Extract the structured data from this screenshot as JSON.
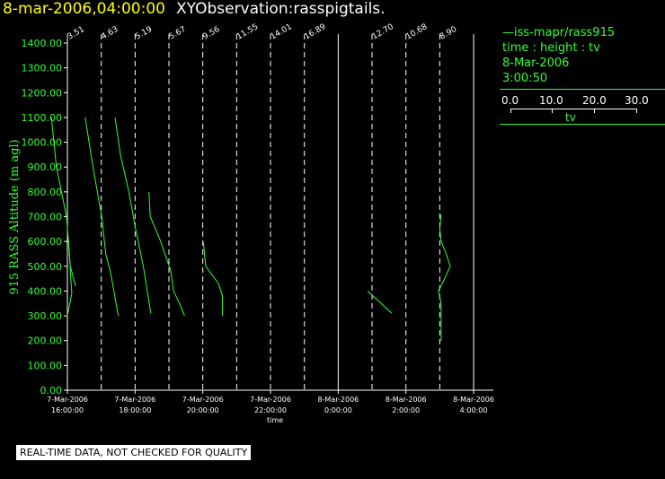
{
  "header": {
    "date": "8-mar-2006,04:00:00",
    "title": "XYObservation:rasspigtails."
  },
  "legend": {
    "series": "iss-mapr/rass915",
    "vars": "time : height : tv",
    "date": "8-Mar-2006",
    "time": "3:00:50",
    "scale_ticks": [
      "0.0",
      "10.0",
      "20.0",
      "30.0"
    ],
    "scale_var": "tv"
  },
  "footer": {
    "quality_note": "REAL-TIME DATA, NOT CHECKED FOR QUALITY"
  },
  "colors": {
    "series": "#33ff33",
    "title_date": "#ffff00",
    "axis": "#ffffff",
    "background": "#000000"
  },
  "chart_data": {
    "type": "line",
    "ylabel": "915 RASS Altitude (m agl)",
    "xlabel": "time",
    "ylim": [
      0,
      1400
    ],
    "y_ticks": [
      "0.00",
      "100.00",
      "200.00",
      "300.00",
      "400.00",
      "500.00",
      "600.00",
      "700.00",
      "800.00",
      "900.00",
      "1000.00",
      "1100.00",
      "1200.00",
      "1300.00",
      "1400.00"
    ],
    "x_ticks": [
      {
        "date": "7-Mar-2006",
        "time": "16:00:00"
      },
      {
        "date": "7-Mar-2006",
        "time": "18:00:00"
      },
      {
        "date": "7-Mar-2006",
        "time": "20:00:00"
      },
      {
        "date": "7-Mar-2006",
        "time": "22:00:00"
      },
      {
        "date": "8-Mar-2006",
        "time": "0:00:00"
      },
      {
        "date": "8-Mar-2006",
        "time": "2:00:00"
      },
      {
        "date": "8-Mar-2006",
        "time": "4:00:00"
      }
    ],
    "grid": true,
    "legend_position": "right",
    "profiles": [
      {
        "base_time": "7-Mar-2006 16:00",
        "label": "3.51",
        "line_style": "dashed",
        "points": [
          [
            0.0,
            300
          ],
          [
            1.3,
            390
          ],
          [
            1.0,
            450
          ],
          [
            0.6,
            550
          ],
          [
            0.2,
            620
          ]
        ]
      },
      {
        "base_time": "7-Mar-2006 17:00",
        "label": "4.63",
        "line_style": "dashed",
        "points": [
          [
            -14.8,
            1100
          ],
          [
            -13.3,
            900
          ],
          [
            -10.3,
            700
          ],
          [
            -9.2,
            500
          ],
          [
            -7.6,
            420
          ]
        ]
      },
      {
        "base_time": "7-Mar-2006 18:00",
        "label": "5.19",
        "line_style": "dashed",
        "points": [
          [
            -14.8,
            1100
          ],
          [
            -12.5,
            900
          ],
          [
            -9.9,
            700
          ],
          [
            -8.7,
            550
          ],
          [
            -7.2,
            470
          ],
          [
            -5.0,
            300
          ]
        ]
      },
      {
        "base_time": "7-Mar-2006 19:00",
        "label": "5.67",
        "line_style": "dashed",
        "points": [
          [
            -16.0,
            1100
          ],
          [
            -14.4,
            950
          ],
          [
            -11.9,
            800
          ],
          [
            -9.9,
            650
          ],
          [
            -7.6,
            500
          ],
          [
            -5.4,
            310
          ]
        ]
      },
      {
        "base_time": "7-Mar-2006 20:00",
        "label": "9.56",
        "line_style": "dashed",
        "points": [
          [
            -16.0,
            800
          ],
          [
            -15.6,
            700
          ],
          [
            -12.5,
            600
          ],
          [
            -9.5,
            480
          ],
          [
            -8.7,
            400
          ],
          [
            -6.9,
            350
          ],
          [
            -5.4,
            300
          ]
        ]
      },
      {
        "base_time": "7-Mar-2006 21:00",
        "label": "11.55",
        "line_style": "dashed",
        "points": [
          [
            -9.9,
            600
          ],
          [
            -9.2,
            500
          ],
          [
            -5.4,
            430
          ],
          [
            -4.2,
            380
          ],
          [
            -4.2,
            300
          ]
        ]
      },
      {
        "base_time": "7-Mar-2006 22:00",
        "label": "14.01",
        "line_style": "dashed",
        "points": []
      },
      {
        "base_time": "7-Mar-2006 23:00",
        "label": "16.89",
        "line_style": "dashed",
        "points": []
      },
      {
        "base_time": "8-Mar-2006 0:00",
        "label": "",
        "line_style": "solid",
        "points": []
      },
      {
        "base_time": "8-Mar-2006 1:00",
        "label": "12.70",
        "line_style": "dashed",
        "points": []
      },
      {
        "base_time": "8-Mar-2006 2:00",
        "label": "10.68",
        "line_style": "dashed",
        "points": [
          [
            -11.4,
            400
          ],
          [
            -4.2,
            310
          ]
        ]
      },
      {
        "base_time": "8-Mar-2006 3:00",
        "label": "8.90",
        "line_style": "dashed",
        "points": [
          [
            0.4,
            710
          ],
          [
            0.0,
            650
          ],
          [
            0.4,
            600
          ],
          [
            1.9,
            550
          ],
          [
            3.1,
            500
          ],
          [
            1.1,
            440
          ],
          [
            -0.4,
            400
          ],
          [
            0.4,
            350
          ],
          [
            0.4,
            300
          ],
          [
            0.4,
            200
          ]
        ]
      },
      {
        "base_time": "8-Mar-2006 4:00",
        "label": "",
        "line_style": "solid",
        "points": []
      }
    ],
    "tv_scale": {
      "var": "tv",
      "range": [
        0,
        30
      ],
      "ticks": [
        0,
        10,
        20,
        30
      ]
    }
  }
}
